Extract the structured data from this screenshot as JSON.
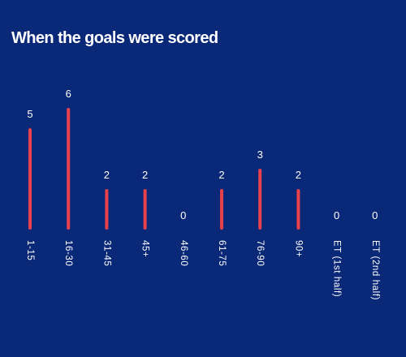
{
  "chart_data": {
    "type": "bar",
    "title": "When the goals were scored",
    "categories": [
      "1-15",
      "16-30",
      "31-45",
      "45+",
      "46-60",
      "61-75",
      "76-90",
      "90+",
      "ET (1st half)",
      "ET (2nd half)"
    ],
    "values": [
      5,
      6,
      2,
      2,
      0,
      2,
      3,
      2,
      0,
      0
    ],
    "value_labels": [
      "5",
      "6",
      "2",
      "2",
      "0",
      "2",
      "3",
      "2",
      "0",
      "0"
    ],
    "xlabel": "",
    "ylabel": "",
    "ylim": [
      0,
      6
    ],
    "grid": false,
    "legend": "none",
    "orientation_of_category_labels": "rotated 90 degrees",
    "colors": {
      "background": "#0a2878",
      "bar": "#e8414b",
      "text": "#ffffff"
    }
  }
}
